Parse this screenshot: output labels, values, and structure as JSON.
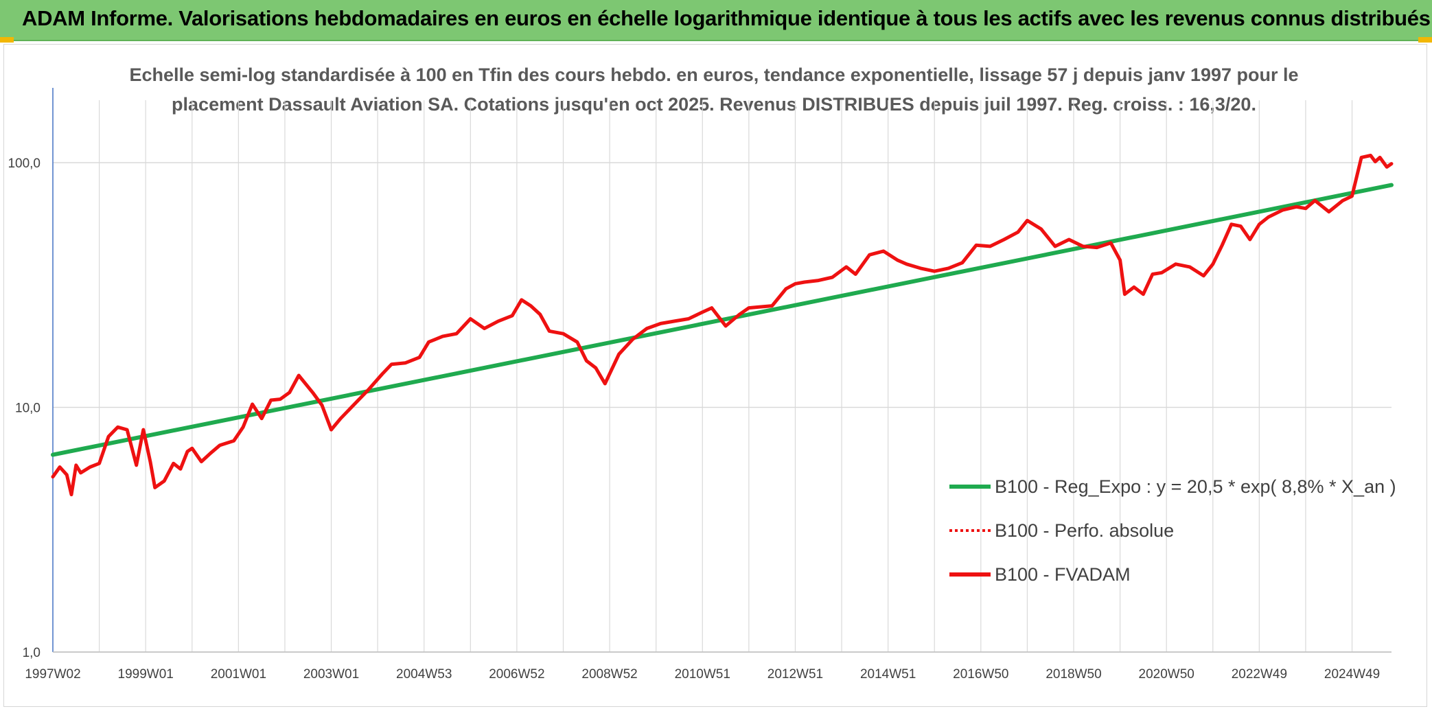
{
  "header": {
    "title": "ADAM Informe. Valorisations hebdomadaires en euros en échelle logarithmique identique à tous les actifs avec les revenus connus distribués"
  },
  "colors": {
    "banner": "#7dc772",
    "trend": "#1faa4f",
    "price": "#ee1111",
    "grid": "#d9d9d9"
  },
  "chart_data": {
    "type": "line",
    "title_line1": "Echelle semi-log standardisée à 100 en Tfin des cours hebdo. en euros, tendance exponentielle, lissage 57 j depuis janv 1997 pour le",
    "title_line2": "placement Dassault Aviation SA. Cotations jusqu'en oct 2025. Revenus DISTRIBUES depuis juil 1997. Reg. croiss. : 16,3/20.",
    "y_scale": "log",
    "ylim": [
      1,
      180
    ],
    "y_ticks": [
      {
        "value": 1,
        "label": "1,0"
      },
      {
        "value": 10,
        "label": "10,0"
      },
      {
        "value": 100,
        "label": "100,0"
      }
    ],
    "xlim": [
      1997.0,
      2025.85
    ],
    "x_ticks": [
      {
        "value": 1997.0,
        "label": "1997W02"
      },
      {
        "value": 1999.0,
        "label": "1999W01"
      },
      {
        "value": 2001.0,
        "label": "2001W01"
      },
      {
        "value": 2003.0,
        "label": "2003W01"
      },
      {
        "value": 2005.0,
        "label": "2004W53"
      },
      {
        "value": 2007.0,
        "label": "2006W52"
      },
      {
        "value": 2009.0,
        "label": "2008W52"
      },
      {
        "value": 2011.0,
        "label": "2010W51"
      },
      {
        "value": 2013.0,
        "label": "2012W51"
      },
      {
        "value": 2015.0,
        "label": "2014W51"
      },
      {
        "value": 2017.0,
        "label": "2016W50"
      },
      {
        "value": 2019.0,
        "label": "2018W50"
      },
      {
        "value": 2021.0,
        "label": "2020W50"
      },
      {
        "value": 2023.0,
        "label": "2022W49"
      },
      {
        "value": 2025.0,
        "label": "2024W49"
      }
    ],
    "legend": [
      {
        "key": "trend",
        "label": "B100 - Reg_Expo : y = 20,5 * exp( 8,8% *  X_an )",
        "style": "solid"
      },
      {
        "key": "perf",
        "label": "B100 - Perfo. absolue",
        "style": "dotted"
      },
      {
        "key": "fvadam",
        "label": "B100 - FVADAM",
        "style": "solid"
      }
    ],
    "series": [
      {
        "name": "B100 - Reg_Expo : y = 20,5 * exp( 8,8% *  X_an )",
        "key": "trend",
        "x": [
          1997.0,
          2025.85
        ],
        "values": [
          6.4,
          81.0
        ]
      },
      {
        "name": "B100 - FVADAM",
        "key": "fvadam",
        "x": [
          1997.0,
          1997.15,
          1997.3,
          1997.4,
          1997.5,
          1997.6,
          1997.8,
          1998.0,
          1998.2,
          1998.4,
          1998.6,
          1998.8,
          1998.95,
          1999.1,
          1999.2,
          1999.4,
          1999.6,
          1999.75,
          1999.9,
          2000.0,
          2000.2,
          2000.4,
          2000.6,
          2000.9,
          2001.1,
          2001.3,
          2001.5,
          2001.7,
          2001.9,
          2002.1,
          2002.3,
          2002.6,
          2002.8,
          2003.0,
          2003.2,
          2003.5,
          2003.8,
          2004.1,
          2004.3,
          2004.6,
          2004.9,
          2005.1,
          2005.4,
          2005.7,
          2006.0,
          2006.3,
          2006.6,
          2006.9,
          2007.1,
          2007.3,
          2007.5,
          2007.7,
          2008.0,
          2008.3,
          2008.5,
          2008.7,
          2008.9,
          2009.2,
          2009.5,
          2009.8,
          2010.1,
          2010.4,
          2010.7,
          2011.0,
          2011.2,
          2011.5,
          2011.8,
          2012.0,
          2012.2,
          2012.5,
          2012.8,
          2013.0,
          2013.2,
          2013.5,
          2013.8,
          2014.1,
          2014.3,
          2014.6,
          2014.9,
          2015.2,
          2015.4,
          2015.7,
          2016.0,
          2016.3,
          2016.6,
          2016.9,
          2017.2,
          2017.5,
          2017.8,
          2018.0,
          2018.3,
          2018.6,
          2018.9,
          2019.2,
          2019.5,
          2019.8,
          2020.0,
          2020.1,
          2020.3,
          2020.5,
          2020.7,
          2020.9,
          2021.2,
          2021.5,
          2021.8,
          2022.0,
          2022.2,
          2022.4,
          2022.6,
          2022.8,
          2023.0,
          2023.2,
          2023.5,
          2023.8,
          2024.0,
          2024.2,
          2024.5,
          2024.8,
          2025.0,
          2025.2,
          2025.4,
          2025.5,
          2025.6,
          2025.75,
          2025.85
        ],
        "values": [
          5.2,
          5.7,
          5.3,
          4.4,
          5.8,
          5.4,
          5.7,
          5.9,
          7.6,
          8.3,
          8.1,
          5.8,
          8.1,
          6.0,
          4.7,
          5.0,
          5.9,
          5.6,
          6.6,
          6.8,
          6.0,
          6.5,
          7.0,
          7.3,
          8.3,
          10.3,
          9.0,
          10.7,
          10.8,
          11.5,
          13.5,
          11.5,
          10.2,
          8.1,
          9.0,
          10.3,
          11.8,
          13.7,
          15.0,
          15.2,
          16.0,
          18.5,
          19.5,
          20.0,
          23.0,
          21.0,
          22.5,
          23.7,
          27.5,
          26.0,
          24.0,
          20.5,
          20.0,
          18.5,
          15.5,
          14.5,
          12.5,
          16.5,
          19.0,
          21.0,
          22.0,
          22.5,
          23.0,
          24.5,
          25.5,
          21.5,
          24.0,
          25.5,
          25.7,
          26.0,
          30.5,
          32.0,
          32.5,
          33.0,
          34.0,
          37.5,
          35.0,
          42.0,
          43.5,
          40.0,
          38.5,
          37.0,
          36.0,
          37.0,
          39.0,
          46.0,
          45.5,
          48.5,
          52.0,
          58.0,
          53.5,
          45.5,
          48.5,
          45.5,
          45.0,
          47.0,
          40.0,
          29.0,
          31.0,
          29.0,
          35.0,
          35.5,
          38.5,
          37.5,
          34.5,
          38.5,
          46.0,
          56.0,
          55.0,
          48.5,
          56.0,
          60.0,
          64.0,
          66.0,
          65.0,
          70.0,
          63.0,
          70.0,
          73.0,
          105.0,
          107.0,
          101.0,
          105.0,
          96.0,
          99.0
        ]
      }
    ]
  }
}
